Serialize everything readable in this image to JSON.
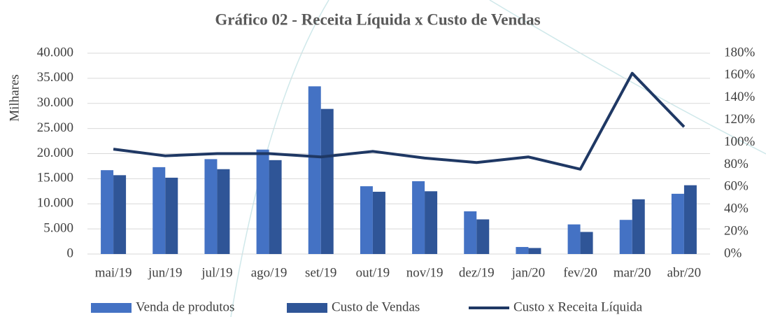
{
  "chart_data": {
    "type": "bar_line",
    "title": "Gráfico 02 - Receita Líquida x Custo de Vendas",
    "y_label": "Milhares",
    "categories": [
      "mai/19",
      "jun/19",
      "jul/19",
      "ago/19",
      "set/19",
      "out/19",
      "nov/19",
      "dez/19",
      "jan/20",
      "fev/20",
      "mar/20",
      "abr/20"
    ],
    "series": [
      {
        "name": "Venda de produtos",
        "type": "bar",
        "color": "#4472c4",
        "values": [
          16700,
          17300,
          18900,
          20800,
          33400,
          13500,
          14500,
          8500,
          1400,
          5900,
          6800,
          12000
        ]
      },
      {
        "name": "Custo de Vendas",
        "type": "bar",
        "color": "#2f5597",
        "values": [
          15700,
          15200,
          16900,
          18700,
          28900,
          12400,
          12500,
          6900,
          1200,
          4400,
          10900,
          13700
        ]
      },
      {
        "name": "Custo x Receita Líquida",
        "type": "line",
        "axis": "y2",
        "color": "#1f3864",
        "values": [
          94,
          88,
          90,
          90,
          87,
          92,
          86,
          82,
          87,
          76,
          162,
          114
        ]
      }
    ],
    "ylim": [
      0,
      40000
    ],
    "yticks": [
      0,
      {
        "value": 5000,
        "label": "5.000"
      },
      {
        "value": 10000,
        "label": "10.000"
      },
      {
        "value": 15000,
        "label": "15.000"
      },
      {
        "value": 20000,
        "label": "20.000"
      },
      {
        "value": 25000,
        "label": "25.000"
      },
      {
        "value": 30000,
        "label": "30.000"
      },
      {
        "value": 35000,
        "label": "35.000"
      },
      {
        "value": 40000,
        "label": "40.000"
      }
    ],
    "y2lim": [
      0,
      180
    ],
    "y2ticks": [
      {
        "value": 0,
        "label": "0%"
      },
      {
        "value": 20,
        "label": "20%"
      },
      {
        "value": 40,
        "label": "40%"
      },
      {
        "value": 60,
        "label": "60%"
      },
      {
        "value": 80,
        "label": "80%"
      },
      {
        "value": 100,
        "label": "100%"
      },
      {
        "value": 120,
        "label": "120%"
      },
      {
        "value": 140,
        "label": "140%"
      },
      {
        "value": 160,
        "label": "160%"
      },
      {
        "value": 180,
        "label": "180%"
      }
    ],
    "grid": true,
    "legend": "bottom"
  }
}
